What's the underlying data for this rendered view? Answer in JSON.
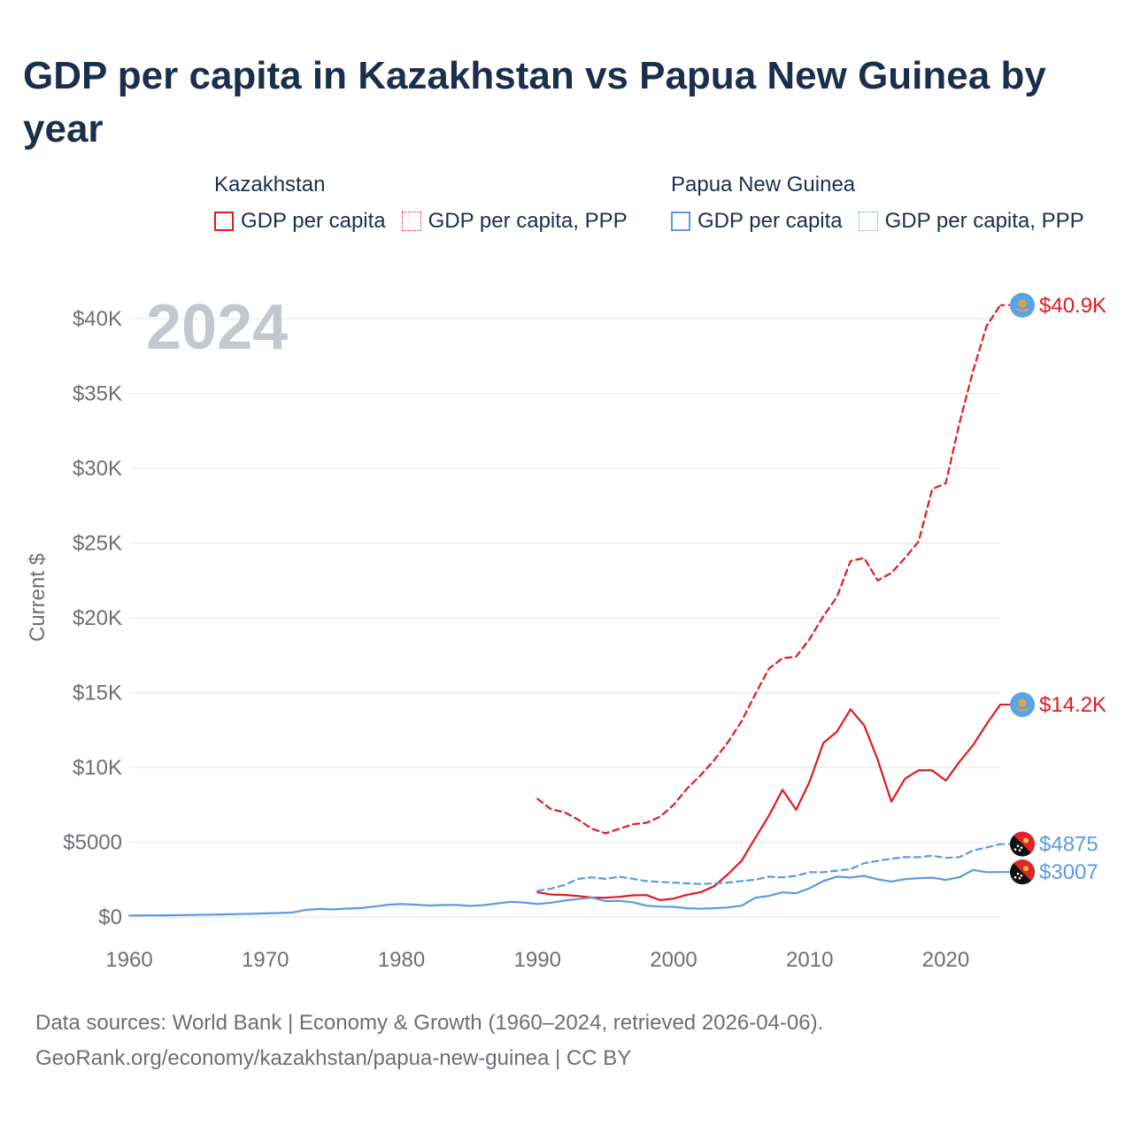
{
  "title": "GDP per capita in Kazakhstan vs Papua New Guinea by year",
  "legend": {
    "groups": [
      {
        "country": "Kazakhstan",
        "items": [
          "GDP per capita",
          "GDP per capita, PPP"
        ]
      },
      {
        "country": "Papua New Guinea",
        "items": [
          "GDP per capita",
          "GDP per capita, PPP"
        ]
      }
    ]
  },
  "footer": {
    "line1": "Data sources: World Bank | Economy & Growth (1960–2024, retrieved 2026-04-06).",
    "line2": "GeoRank.org/economy/kazakhstan/papua-new-guinea | CC BY"
  },
  "colors": {
    "kazakhstan": "#e31a1c",
    "papua_new_guinea": "#5b9be0",
    "grid": "#e6e6e6",
    "axis_text": "#6b6f75",
    "year_watermark": "#c3c8cf"
  },
  "chart_data": {
    "type": "line",
    "year_label": "2024",
    "ylabel": "Current $",
    "xlim": [
      1960,
      2024
    ],
    "ylim": [
      0,
      42000
    ],
    "x_ticks": [
      1960,
      1970,
      1980,
      1990,
      2000,
      2010,
      2020
    ],
    "x_tick_labels": [
      "1960",
      "1970",
      "1980",
      "1990",
      "2000",
      "2010",
      "2020"
    ],
    "y_ticks": [
      0,
      5000,
      10000,
      15000,
      20000,
      25000,
      30000,
      35000,
      40000
    ],
    "y_tick_labels": [
      "$0",
      "$5000",
      "$10K",
      "$15K",
      "$20K",
      "$25K",
      "$30K",
      "$35K",
      "$40K"
    ],
    "series": [
      {
        "name": "Kazakhstan GDP per capita PPP",
        "country": "Kazakhstan",
        "color": "#e31a1c",
        "dash": "dashed",
        "end_label": "$40.9K",
        "flag": "kz",
        "x": [
          1990,
          1991,
          1992,
          1993,
          1994,
          1995,
          1996,
          1997,
          1998,
          1999,
          2000,
          2001,
          2002,
          2003,
          2004,
          2005,
          2006,
          2007,
          2008,
          2009,
          2010,
          2011,
          2012,
          2013,
          2014,
          2015,
          2016,
          2017,
          2018,
          2019,
          2020,
          2021,
          2022,
          2023,
          2024
        ],
        "y": [
          7900,
          7200,
          7000,
          6500,
          5900,
          5600,
          5900,
          6200,
          6300,
          6700,
          7500,
          8600,
          9500,
          10500,
          11700,
          13100,
          14900,
          16600,
          17300,
          17400,
          18600,
          20100,
          21400,
          23800,
          24000,
          22500,
          23000,
          24000,
          25100,
          28600,
          29000,
          33000,
          36500,
          39500,
          40900
        ]
      },
      {
        "name": "Kazakhstan GDP per capita",
        "country": "Kazakhstan",
        "color": "#e31a1c",
        "dash": "solid",
        "end_label": "$14.2K",
        "flag": "kz",
        "x": [
          1990,
          1991,
          1992,
          1993,
          1994,
          1995,
          1996,
          1997,
          1998,
          1999,
          2000,
          2001,
          2002,
          2003,
          2004,
          2005,
          2006,
          2007,
          2008,
          2009,
          2010,
          2011,
          2012,
          2013,
          2014,
          2015,
          2016,
          2017,
          2018,
          2019,
          2020,
          2021,
          2022,
          2023,
          2024
        ],
        "y": [
          1650,
          1500,
          1480,
          1400,
          1300,
          1290,
          1350,
          1450,
          1470,
          1130,
          1230,
          1490,
          1660,
          2070,
          2870,
          3770,
          5290,
          6770,
          8510,
          7170,
          9070,
          11630,
          12390,
          13890,
          12810,
          10510,
          7710,
          9250,
          9810,
          9810,
          9120,
          10370,
          11490,
          12900,
          14200
        ]
      },
      {
        "name": "Papua New Guinea GDP per capita PPP",
        "country": "Papua New Guinea",
        "color": "#5b9be0",
        "dash": "dashed",
        "end_label": "$4875",
        "flag": "png",
        "x": [
          1990,
          1991,
          1992,
          1993,
          1994,
          1995,
          1996,
          1997,
          1998,
          1999,
          2000,
          2001,
          2002,
          2003,
          2004,
          2005,
          2006,
          2007,
          2008,
          2009,
          2010,
          2011,
          2012,
          2013,
          2014,
          2015,
          2016,
          2017,
          2018,
          2019,
          2020,
          2021,
          2022,
          2023,
          2024
        ],
        "y": [
          1750,
          1900,
          2150,
          2550,
          2650,
          2550,
          2700,
          2550,
          2400,
          2350,
          2300,
          2250,
          2200,
          2250,
          2300,
          2400,
          2500,
          2700,
          2650,
          2750,
          3000,
          3000,
          3100,
          3200,
          3600,
          3750,
          3900,
          4000,
          4000,
          4100,
          3950,
          4000,
          4450,
          4650,
          4875
        ]
      },
      {
        "name": "Papua New Guinea GDP per capita",
        "country": "Papua New Guinea",
        "color": "#5b9be0",
        "dash": "solid",
        "end_label": "$3007",
        "flag": "png",
        "x": [
          1960,
          1961,
          1962,
          1963,
          1964,
          1965,
          1966,
          1967,
          1968,
          1969,
          1970,
          1971,
          1972,
          1973,
          1974,
          1975,
          1976,
          1977,
          1978,
          1979,
          1980,
          1981,
          1982,
          1983,
          1984,
          1985,
          1986,
          1987,
          1988,
          1989,
          1990,
          1991,
          1992,
          1993,
          1994,
          1995,
          1996,
          1997,
          1998,
          1999,
          2000,
          2001,
          2002,
          2003,
          2004,
          2005,
          2006,
          2007,
          2008,
          2009,
          2010,
          2011,
          2012,
          2013,
          2014,
          2015,
          2016,
          2017,
          2018,
          2019,
          2020,
          2021,
          2022,
          2023,
          2024
        ],
        "y": [
          100,
          105,
          110,
          120,
          130,
          145,
          160,
          175,
          195,
          215,
          240,
          265,
          310,
          480,
          540,
          510,
          560,
          600,
          700,
          820,
          870,
          830,
          770,
          800,
          810,
          740,
          790,
          900,
          1020,
          970,
          870,
          960,
          1100,
          1200,
          1300,
          1060,
          1080,
          990,
          760,
          700,
          680,
          590,
          550,
          590,
          640,
          760,
          1290,
          1410,
          1650,
          1590,
          1930,
          2400,
          2700,
          2640,
          2750,
          2520,
          2370,
          2530,
          2600,
          2630,
          2480,
          2660,
          3140,
          3000,
          3007
        ]
      }
    ]
  }
}
